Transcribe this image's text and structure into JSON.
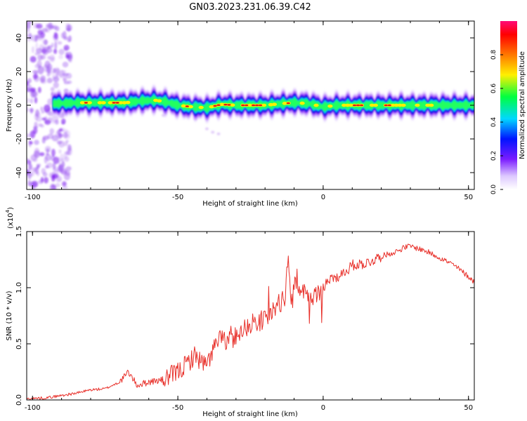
{
  "title": "GN03.2023.231.06.39.C42",
  "colors": {
    "snr_line": "#e8302a",
    "ridge_center": "#dd1a1a",
    "noise": "#9a55f0"
  },
  "chart_data": [
    {
      "type": "heatmap",
      "xlabel": "Height of straight line (km)",
      "ylabel": "Frequency (Hz)",
      "xlim": [
        -102,
        52
      ],
      "ylim": [
        -50,
        50
      ],
      "xticks": [
        -100,
        -50,
        0,
        50
      ],
      "yticks": [
        40,
        20,
        0,
        -20,
        -40
      ],
      "colorbar": {
        "label": "Normalized spectral amplitude",
        "range": [
          0.0,
          1.0
        ],
        "ticks": [
          0.0,
          0.2,
          0.4,
          0.6,
          0.8
        ],
        "colormap": "rainbow"
      },
      "grid": false,
      "ridge": {
        "x": [
          -92,
          -85,
          -75,
          -68,
          -63,
          -58,
          -54,
          -50,
          -45,
          -40,
          -35,
          -30,
          -20,
          -14,
          -10,
          -5,
          0,
          5,
          15,
          30,
          52
        ],
        "frequency": [
          1,
          1.5,
          1.5,
          1.5,
          2.5,
          3,
          2,
          0,
          -1,
          -1.5,
          0.5,
          0,
          0,
          1,
          1.5,
          1,
          -1,
          0,
          0,
          0,
          0
        ],
        "peak_amplitude": [
          0.3,
          0.7,
          0.85,
          0.95,
          0.5,
          0.7,
          0.8,
          0.6,
          0.85,
          0.7,
          0.9,
          0.95,
          0.95,
          0.75,
          0.6,
          0.85,
          0.4,
          0.9,
          0.85,
          0.75,
          0.4
        ]
      }
    },
    {
      "type": "line",
      "xlabel": "Height of straight line (km)",
      "ylabel": "SNR (10 * v/v)",
      "y_multiplier": "(x10",
      "y_multiplier_exp": "4",
      "y_multiplier_close": ")",
      "xlim": [
        -102,
        52
      ],
      "ylim": [
        0.0,
        1.5
      ],
      "xticks": [
        -100,
        -50,
        0,
        50
      ],
      "yticks": [
        0.0,
        0.5,
        1.0,
        1.5
      ],
      "ytick_labels": [
        "0.0",
        "0.5",
        "1.0",
        "1.5"
      ],
      "grid": false,
      "series": [
        {
          "x": [
            -102,
            -95,
            -90,
            -85,
            -80,
            -75,
            -70,
            -67,
            -64,
            -60,
            -55,
            -50,
            -47,
            -44,
            -42,
            -40,
            -38,
            -35,
            -33,
            -30,
            -28,
            -25,
            -22,
            -20,
            -18,
            -15,
            -13,
            -12,
            -11,
            -10,
            -8,
            -6,
            -4,
            -2,
            0,
            3,
            5,
            8,
            10,
            15,
            20,
            25,
            28,
            30,
            35,
            40,
            45,
            50,
            52
          ],
          "y": [
            0.01,
            0.02,
            0.04,
            0.06,
            0.09,
            0.1,
            0.16,
            0.25,
            0.13,
            0.16,
            0.18,
            0.25,
            0.32,
            0.4,
            0.34,
            0.3,
            0.45,
            0.55,
            0.5,
            0.58,
            0.62,
            0.68,
            0.7,
            0.72,
            0.78,
            0.86,
            0.92,
            1.3,
            0.8,
            1.02,
            1.0,
            0.95,
            0.9,
            0.95,
            1.0,
            1.08,
            1.1,
            1.15,
            1.2,
            1.22,
            1.28,
            1.32,
            1.36,
            1.37,
            1.33,
            1.27,
            1.2,
            1.1,
            1.05
          ]
        }
      ]
    }
  ]
}
